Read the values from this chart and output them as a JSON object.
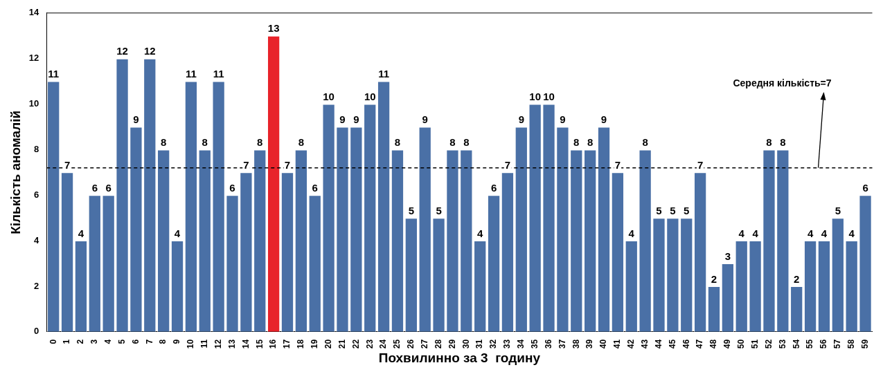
{
  "chart_data": {
    "type": "bar",
    "xlabel": "Похвилинно за 3  годину",
    "ylabel": "Кількість аномалій",
    "categories": [
      "0",
      "1",
      "2",
      "3",
      "4",
      "5",
      "6",
      "7",
      "8",
      "9",
      "10",
      "11",
      "12",
      "13",
      "14",
      "15",
      "16",
      "17",
      "18",
      "19",
      "20",
      "21",
      "22",
      "23",
      "24",
      "25",
      "26",
      "27",
      "28",
      "29",
      "30",
      "31",
      "32",
      "33",
      "34",
      "35",
      "36",
      "37",
      "38",
      "39",
      "40",
      "41",
      "42",
      "43",
      "44",
      "45",
      "46",
      "47",
      "48",
      "49",
      "50",
      "51",
      "52",
      "53",
      "54",
      "55",
      "56",
      "57",
      "58",
      "59"
    ],
    "values": [
      11,
      7,
      4,
      6,
      6,
      12,
      9,
      12,
      8,
      4,
      11,
      8,
      11,
      6,
      7,
      8,
      13,
      7,
      8,
      6,
      10,
      9,
      9,
      10,
      11,
      8,
      5,
      9,
      5,
      8,
      8,
      4,
      6,
      7,
      9,
      10,
      10,
      9,
      8,
      8,
      9,
      7,
      4,
      8,
      5,
      5,
      5,
      7,
      2,
      3,
      4,
      4,
      8,
      8,
      2,
      4,
      4,
      5,
      4,
      6
    ],
    "colors": [
      "#4a70a6",
      "#4a70a6",
      "#4a70a6",
      "#4a70a6",
      "#4a70a6",
      "#4a70a6",
      "#4a70a6",
      "#4a70a6",
      "#4a70a6",
      "#4a70a6",
      "#4a70a6",
      "#4a70a6",
      "#4a70a6",
      "#4a70a6",
      "#4a70a6",
      "#4a70a6",
      "#e8232a",
      "#4a70a6",
      "#4a70a6",
      "#4a70a6",
      "#4a70a6",
      "#4a70a6",
      "#4a70a6",
      "#4a70a6",
      "#4a70a6",
      "#4a70a6",
      "#4a70a6",
      "#4a70a6",
      "#4a70a6",
      "#4a70a6",
      "#4a70a6",
      "#4a70a6",
      "#4a70a6",
      "#4a70a6",
      "#4a70a6",
      "#4a70a6",
      "#4a70a6",
      "#4a70a6",
      "#4a70a6",
      "#4a70a6",
      "#4a70a6",
      "#4a70a6",
      "#4a70a6",
      "#4a70a6",
      "#4a70a6",
      "#4a70a6",
      "#4a70a6",
      "#4a70a6",
      "#4a70a6",
      "#4a70a6",
      "#4a70a6",
      "#4a70a6",
      "#4a70a6",
      "#4a70a6",
      "#4a70a6",
      "#4a70a6",
      "#4a70a6",
      "#4a70a6",
      "#4a70a6",
      "#4a70a6"
    ],
    "ylim": [
      0,
      14
    ],
    "yticks": [
      0,
      2,
      4,
      6,
      8,
      10,
      12,
      14
    ],
    "grid": false,
    "legend": false,
    "data_labels": true,
    "ref_lines": [
      {
        "axis": "y",
        "value": 7.2,
        "label": "Середня кількість=7",
        "line_style": "dashed",
        "color": "#000000"
      }
    ]
  }
}
